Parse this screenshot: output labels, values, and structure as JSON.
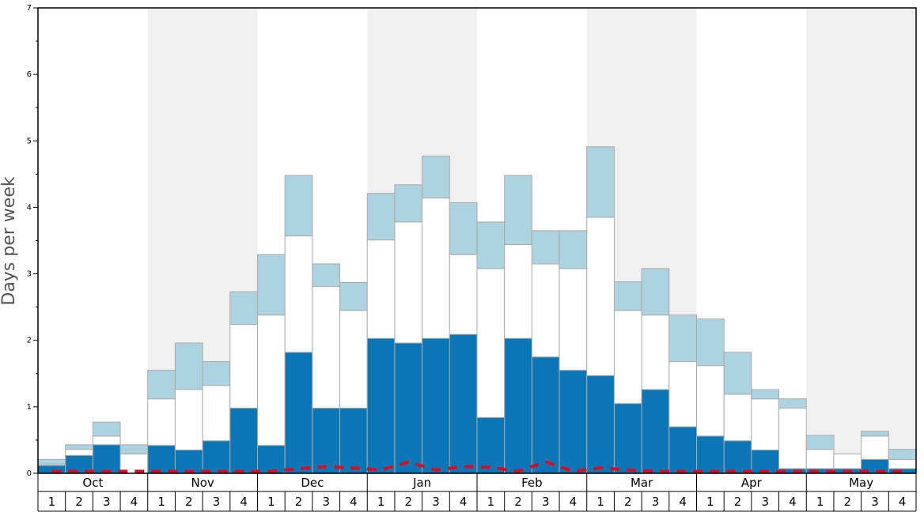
{
  "chart_data": {
    "type": "bar",
    "stacked": true,
    "ylabel": "Days per week",
    "categories": [
      "1",
      "2",
      "3",
      "4",
      "1",
      "2",
      "3",
      "4",
      "1",
      "2",
      "3",
      "4",
      "1",
      "2",
      "3",
      "4",
      "1",
      "2",
      "3",
      "4",
      "1",
      "2",
      "3",
      "4",
      "1",
      "2",
      "3",
      "4",
      "1",
      "2",
      "3",
      "4"
    ],
    "groups": [
      "Oct",
      "Nov",
      "Dec",
      "Jan",
      "Feb",
      "Mar",
      "Apr",
      "May"
    ],
    "ylim": [
      0,
      7
    ],
    "yticks": [
      0,
      1,
      2,
      3,
      4,
      5,
      6,
      7
    ],
    "yminorticks": [
      0.5,
      1.5,
      2.5,
      3.5,
      4.5,
      5.5,
      6.5
    ],
    "series": [
      {
        "color": "#0a76b6",
        "values": [
          0.12,
          0.27,
          0.43,
          0,
          0.42,
          0.35,
          0.49,
          0.98,
          0.42,
          1.82,
          0.98,
          0.98,
          2.03,
          1.96,
          2.03,
          2.09,
          0.84,
          2.03,
          1.75,
          1.55,
          1.47,
          1.05,
          1.26,
          0.7,
          0.56,
          0.49,
          0.35,
          0.07,
          0.07,
          0.07,
          0.21,
          0.07
        ]
      },
      {
        "color": "#ffffff",
        "values": [
          0.02,
          0.09,
          0.13,
          0.29,
          0.7,
          0.91,
          0.83,
          1.26,
          1.96,
          1.75,
          1.83,
          1.47,
          1.48,
          1.82,
          2.11,
          1.2,
          2.24,
          1.41,
          1.4,
          1.53,
          2.38,
          1.4,
          1.12,
          0.98,
          1.06,
          0.7,
          0.77,
          0.91,
          0.29,
          0.22,
          0.35,
          0.14
        ]
      },
      {
        "color": "#aed3e0",
        "values": [
          0.07,
          0.07,
          0.21,
          0.14,
          0.43,
          0.7,
          0.36,
          0.49,
          0.91,
          0.91,
          0.34,
          0.42,
          0.7,
          0.56,
          0.63,
          0.78,
          0.7,
          1.04,
          0.5,
          0.57,
          1.06,
          0.43,
          0.7,
          0.7,
          0.7,
          0.63,
          0.14,
          0.14,
          0.21,
          0,
          0.07,
          0.15
        ]
      },
      {
        "type": "line",
        "color": "#d0102a",
        "values": [
          0.03,
          0.03,
          0.03,
          0.03,
          0.03,
          0.03,
          0.03,
          0.03,
          0.03,
          0.07,
          0.1,
          0.08,
          0.05,
          0.17,
          0.05,
          0.1,
          0.09,
          0.03,
          0.17,
          0.03,
          0.08,
          0.05,
          0.03,
          0.03,
          0.03,
          0.03,
          0.03,
          0.03,
          0.03,
          0.03,
          0.03,
          0.03
        ]
      }
    ]
  }
}
